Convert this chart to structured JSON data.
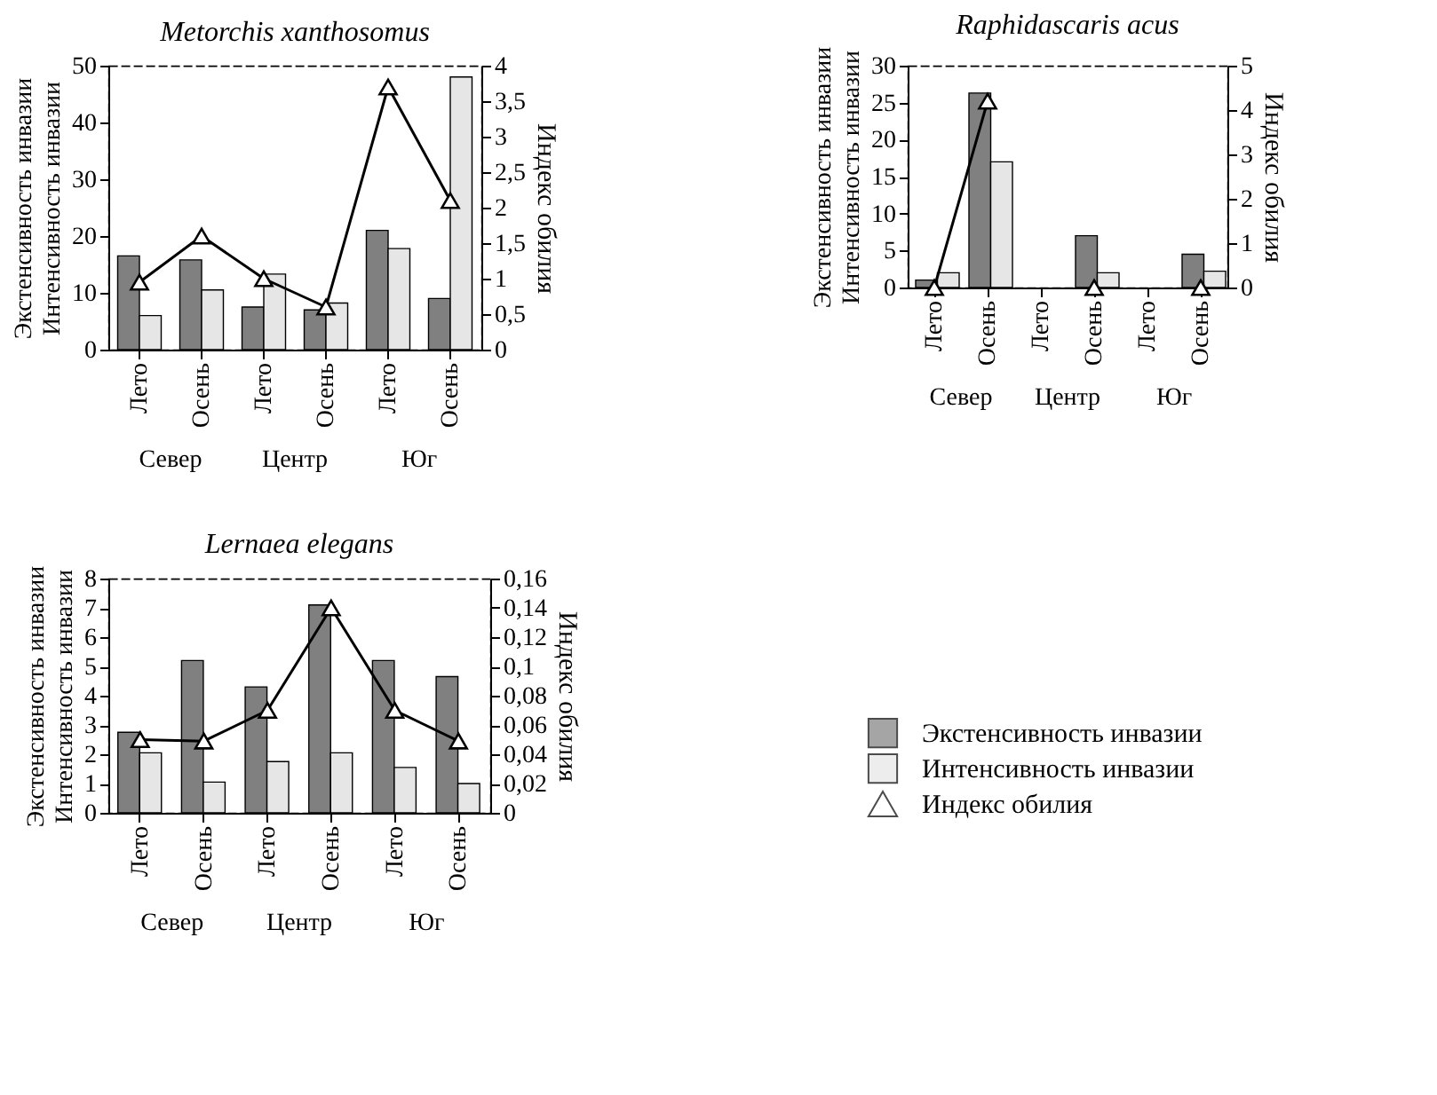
{
  "chart_data": [
    {
      "type": "bar",
      "title": "Metorchis xanthosomus",
      "ylabel": "Экстенсивность инвазии\nИнтенсивность инвазии",
      "y2label": "Индекс обилия",
      "categories": [
        "Лето",
        "Осень",
        "Лето",
        "Осень",
        "Лето",
        "Осень"
      ],
      "annotations": [
        "Север",
        "Центр",
        "Юг"
      ],
      "ylim": [
        0,
        50
      ],
      "yticks": [
        0,
        10,
        20,
        30,
        40,
        50
      ],
      "y2lim": [
        0,
        4
      ],
      "y2ticks": [
        0,
        {
          "value": 0.5,
          "label": "0,5"
        },
        1,
        {
          "value": 1.5,
          "label": "1,5"
        },
        2,
        {
          "value": 2.5,
          "label": "2,5"
        },
        3,
        {
          "value": 3.5,
          "label": "3,5"
        },
        4
      ],
      "grid": false,
      "marker": "triangle",
      "series": [
        {
          "color": "#808080",
          "values": [
            16.5,
            15.8,
            7.5,
            7,
            21,
            9
          ]
        },
        {
          "color": "#e6e6e6",
          "values": [
            6,
            10.5,
            13.3,
            8.2,
            17.8,
            48
          ]
        },
        {
          "type": "line",
          "axis": "y2",
          "color": "#000000",
          "values": [
            0.95,
            1.6,
            1.0,
            0.6,
            3.7,
            2.1
          ]
        }
      ]
    },
    {
      "type": "bar",
      "title": "Raphidascaris acus",
      "ylabel": "Экстенсивность инвазии\nИнтенсивность инвазии",
      "y2label": "Индекс обилия",
      "categories": [
        "Лето",
        "Осень",
        "Лето",
        "Осень",
        "Лето",
        "Осень"
      ],
      "annotations": [
        "Север",
        "Центр",
        "Юг"
      ],
      "ylim": [
        0,
        30
      ],
      "yticks": [
        0,
        5,
        10,
        15,
        20,
        25,
        30
      ],
      "y2lim": [
        0,
        5
      ],
      "y2ticks": [
        0,
        1,
        2,
        3,
        4,
        5
      ],
      "grid": false,
      "marker": "triangle",
      "series": [
        {
          "color": "#808080",
          "values": [
            1,
            26.3,
            null,
            7,
            null,
            4.5
          ]
        },
        {
          "color": "#e6e6e6",
          "values": [
            2,
            17,
            null,
            2,
            null,
            2.2
          ]
        },
        {
          "type": "line",
          "axis": "y2",
          "color": "#000000",
          "values": [
            0,
            4.2,
            null,
            0,
            null,
            0
          ]
        }
      ]
    },
    {
      "type": "bar",
      "title": "Lernaea elegans",
      "ylabel": "Экстенсивность инвазии\nИнтенсивность инвазии",
      "y2label": "Индекс обилия",
      "categories": [
        "Лето",
        "Осень",
        "Лето",
        "Осень",
        "Лето",
        "Осень"
      ],
      "annotations": [
        "Север",
        "Центр",
        "Юг"
      ],
      "ylim": [
        0,
        8
      ],
      "yticks": [
        0,
        1,
        2,
        3,
        4,
        5,
        6,
        7,
        8
      ],
      "y2lim": [
        0,
        0.16
      ],
      "y2ticks": [
        0,
        {
          "value": 0.02,
          "label": "0,02"
        },
        {
          "value": 0.04,
          "label": "0,04"
        },
        {
          "value": 0.06,
          "label": "0,06"
        },
        {
          "value": 0.08,
          "label": "0,08"
        },
        {
          "value": 0.1,
          "label": "0,1"
        },
        {
          "value": 0.12,
          "label": "0,12"
        },
        {
          "value": 0.14,
          "label": "0,14"
        },
        {
          "value": 0.16,
          "label": "0,16"
        }
      ],
      "grid": false,
      "marker": "triangle",
      "legend": "right",
      "series": [
        {
          "name": "Экстенсивность инвазии",
          "color": "#808080",
          "values": [
            2.75,
            5.2,
            4.3,
            7.1,
            5.2,
            4.65
          ]
        },
        {
          "name": "Интенсивность инвазии",
          "color": "#e6e6e6",
          "values": [
            2.05,
            1.05,
            1.75,
            2.05,
            1.55,
            1.0
          ]
        },
        {
          "name": "Индекс обилия",
          "type": "line",
          "axis": "y2",
          "color": "#000000",
          "values": [
            0.05,
            0.049,
            0.07,
            0.14,
            0.07,
            0.049
          ]
        }
      ]
    }
  ]
}
